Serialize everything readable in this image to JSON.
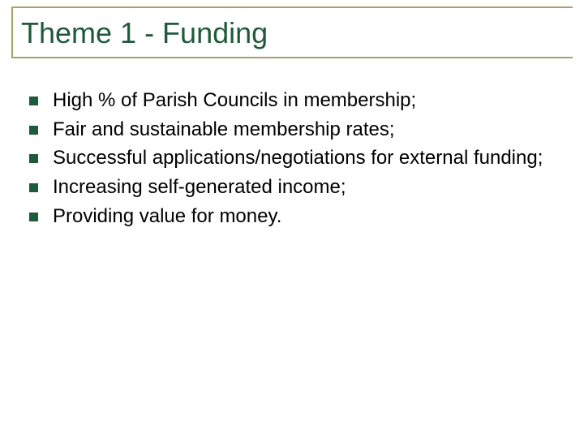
{
  "slide": {
    "title": "Theme 1 - Funding",
    "title_color": "#1f5a3a",
    "title_fontsize": 36,
    "title_border_color": "#a8a06a",
    "background_color": "#ffffff",
    "bullets": [
      {
        "text": "High % of Parish Councils in membership;"
      },
      {
        "text": "Fair and sustainable membership rates;"
      },
      {
        "text": "Successful applications/negotiations for external funding;"
      },
      {
        "text": "Increasing self-generated income;"
      },
      {
        "text": "Providing value for money."
      }
    ],
    "bullet_color": "#1f5a3a",
    "bullet_fontsize": 24,
    "text_color": "#000000"
  }
}
